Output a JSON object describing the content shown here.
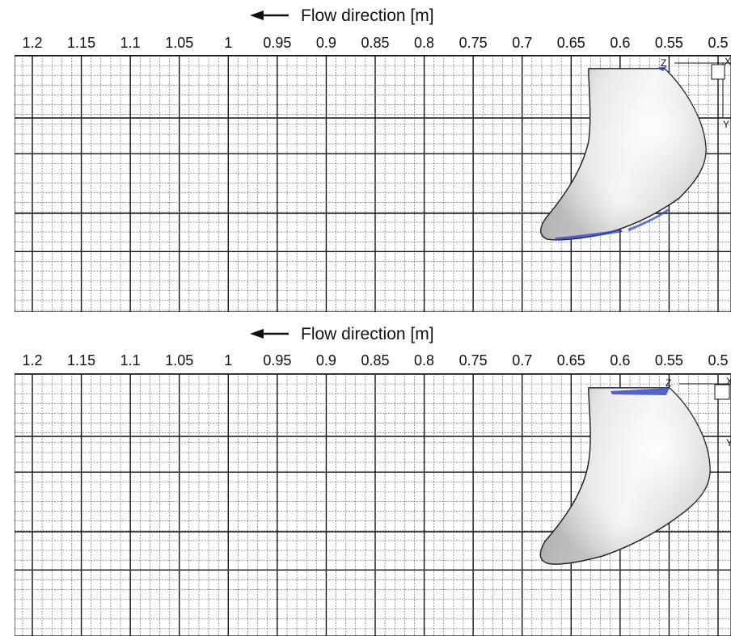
{
  "colors": {
    "background": "#ffffff",
    "grid_major": "#111111",
    "grid_minor": "#555555",
    "body_fill_light": "#ffffff",
    "body_fill_dark": "#9a9a9a",
    "body_outline": "#000000",
    "highlight_blue": "#2b3fbf"
  },
  "panels": [
    {
      "id": "top",
      "title": "Flow direction [m]",
      "arrow_icon": "left-arrow-icon",
      "ticks": [
        "1.2",
        "1.15",
        "1.1",
        "1.05",
        "1",
        "0.95",
        "0.9",
        "0.85",
        "0.8",
        "0.75",
        "0.7",
        "0.65",
        "0.6",
        "0.55",
        "0.5"
      ],
      "tick_values": [
        1.2,
        1.15,
        1.1,
        1.05,
        1.0,
        0.95,
        0.9,
        0.85,
        0.8,
        0.75,
        0.7,
        0.65,
        0.6,
        0.55,
        0.5
      ],
      "axes_triad": {
        "z": "Z",
        "y": "Y",
        "x": "X"
      }
    },
    {
      "id": "bottom",
      "title": "Flow direction [m]",
      "arrow_icon": "left-arrow-icon",
      "ticks": [
        "1.2",
        "1.15",
        "1.1",
        "1.05",
        "1",
        "0.95",
        "0.9",
        "0.85",
        "0.8",
        "0.75",
        "0.7",
        "0.65",
        "0.6",
        "0.55",
        "0.5"
      ],
      "tick_values": [
        1.2,
        1.15,
        1.1,
        1.05,
        1.0,
        0.95,
        0.9,
        0.85,
        0.8,
        0.75,
        0.7,
        0.65,
        0.6,
        0.55,
        0.5
      ],
      "axes_triad": {
        "z": "Z",
        "y": "Y",
        "x": "X"
      }
    }
  ]
}
